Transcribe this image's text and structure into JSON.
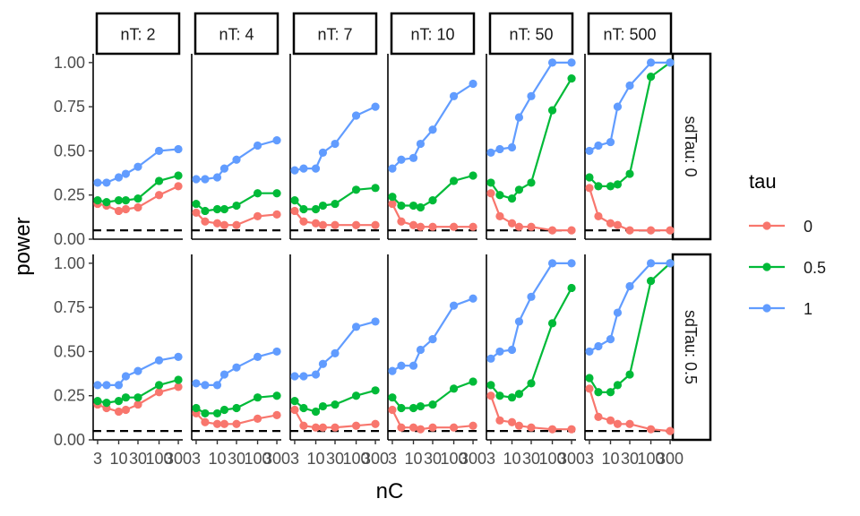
{
  "chart_data": {
    "type": "line",
    "xlabel": "nC",
    "ylabel": "power",
    "x": [
      3,
      5,
      10,
      15,
      30,
      100,
      300
    ],
    "x_scale": "log10",
    "x_ticks": [
      3,
      10,
      30,
      100,
      300
    ],
    "x_tick_labels": [
      "3",
      "10",
      "30",
      "100",
      "300"
    ],
    "ylim": [
      0,
      1.05
    ],
    "y_ticks": [
      0,
      0.25,
      0.5,
      0.75,
      1
    ],
    "y_tick_labels": [
      "0.00",
      "0.25",
      "0.50",
      "0.75",
      "1.00"
    ],
    "reference_line": 0.05,
    "grid": false,
    "col_facets": [
      "nT: 2",
      "nT: 4",
      "nT: 7",
      "nT: 10",
      "nT: 50",
      "nT: 500"
    ],
    "row_facets": [
      "sdTau: 0",
      "sdTau: 0.5"
    ],
    "legend": {
      "title": "tau",
      "position": "right",
      "entries": [
        {
          "label": "0",
          "color": "#F8766D"
        },
        {
          "label": "0.5",
          "color": "#00BA38"
        },
        {
          "label": "1",
          "color": "#619CFF"
        }
      ]
    },
    "panels": [
      [
        [
          [
            0.2,
            0.19,
            0.16,
            0.17,
            0.18,
            0.25,
            0.3
          ],
          [
            0.22,
            0.21,
            0.22,
            0.22,
            0.23,
            0.33,
            0.36
          ],
          [
            0.32,
            0.32,
            0.35,
            0.37,
            0.41,
            0.5,
            0.51
          ]
        ],
        [
          [
            0.15,
            0.1,
            0.09,
            0.08,
            0.08,
            0.13,
            0.14
          ],
          [
            0.2,
            0.16,
            0.17,
            0.17,
            0.19,
            0.26,
            0.26
          ],
          [
            0.34,
            0.34,
            0.35,
            0.4,
            0.45,
            0.53,
            0.56
          ]
        ],
        [
          [
            0.16,
            0.1,
            0.09,
            0.08,
            0.08,
            0.08,
            0.08
          ],
          [
            0.22,
            0.17,
            0.17,
            0.19,
            0.2,
            0.28,
            0.29
          ],
          [
            0.39,
            0.4,
            0.4,
            0.49,
            0.54,
            0.7,
            0.75
          ]
        ],
        [
          [
            0.2,
            0.1,
            0.08,
            0.07,
            0.07,
            0.07,
            0.07
          ],
          [
            0.24,
            0.19,
            0.19,
            0.18,
            0.22,
            0.33,
            0.36
          ],
          [
            0.4,
            0.45,
            0.46,
            0.54,
            0.62,
            0.81,
            0.88
          ]
        ],
        [
          [
            0.26,
            0.13,
            0.09,
            0.07,
            0.07,
            0.05,
            0.05
          ],
          [
            0.32,
            0.25,
            0.23,
            0.28,
            0.32,
            0.73,
            0.91
          ],
          [
            0.49,
            0.51,
            0.52,
            0.69,
            0.81,
            1.0,
            1.0
          ]
        ],
        [
          [
            0.29,
            0.13,
            0.09,
            0.08,
            0.05,
            0.05,
            0.05
          ],
          [
            0.35,
            0.3,
            0.3,
            0.31,
            0.37,
            0.92,
            1.0
          ],
          [
            0.5,
            0.53,
            0.55,
            0.75,
            0.87,
            1.0,
            1.0
          ]
        ]
      ],
      [
        [
          [
            0.2,
            0.18,
            0.16,
            0.17,
            0.2,
            0.27,
            0.3
          ],
          [
            0.22,
            0.21,
            0.22,
            0.24,
            0.24,
            0.31,
            0.34
          ],
          [
            0.31,
            0.31,
            0.31,
            0.36,
            0.39,
            0.45,
            0.47
          ]
        ],
        [
          [
            0.15,
            0.1,
            0.09,
            0.09,
            0.09,
            0.12,
            0.14
          ],
          [
            0.18,
            0.15,
            0.15,
            0.17,
            0.18,
            0.24,
            0.25
          ],
          [
            0.32,
            0.31,
            0.31,
            0.37,
            0.41,
            0.47,
            0.5
          ]
        ],
        [
          [
            0.17,
            0.08,
            0.07,
            0.07,
            0.07,
            0.08,
            0.09
          ],
          [
            0.22,
            0.18,
            0.16,
            0.19,
            0.2,
            0.25,
            0.28
          ],
          [
            0.36,
            0.36,
            0.37,
            0.43,
            0.49,
            0.64,
            0.67
          ]
        ],
        [
          [
            0.17,
            0.07,
            0.07,
            0.06,
            0.07,
            0.07,
            0.08
          ],
          [
            0.24,
            0.18,
            0.18,
            0.19,
            0.2,
            0.29,
            0.33
          ],
          [
            0.39,
            0.42,
            0.42,
            0.51,
            0.57,
            0.76,
            0.8
          ]
        ],
        [
          [
            0.25,
            0.11,
            0.1,
            0.08,
            0.07,
            0.06,
            0.06
          ],
          [
            0.31,
            0.25,
            0.24,
            0.26,
            0.32,
            0.66,
            0.86
          ],
          [
            0.46,
            0.5,
            0.51,
            0.67,
            0.81,
            1.0,
            1.0
          ]
        ],
        [
          [
            0.29,
            0.13,
            0.11,
            0.09,
            0.09,
            0.06,
            0.05
          ],
          [
            0.35,
            0.27,
            0.27,
            0.31,
            0.37,
            0.9,
            1.0
          ],
          [
            0.5,
            0.53,
            0.57,
            0.72,
            0.87,
            1.0,
            1.0
          ]
        ]
      ]
    ]
  }
}
